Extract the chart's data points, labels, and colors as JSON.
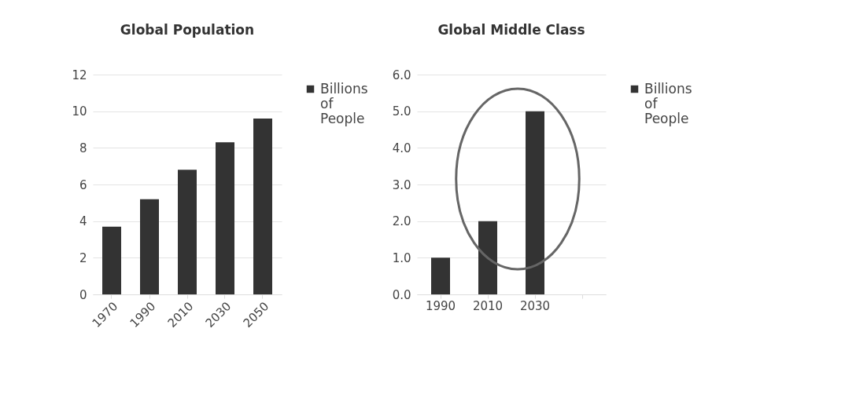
{
  "chart_data": [
    {
      "type": "bar",
      "title": "Global Population",
      "categories": [
        "1970",
        "1990",
        "2010",
        "2030",
        "2050"
      ],
      "series": [
        {
          "name": "Billions of People",
          "color": "#333333",
          "values": [
            3.7,
            5.2,
            6.8,
            8.3,
            9.6
          ]
        }
      ],
      "ylim": [
        0,
        12
      ],
      "yticks": [
        0,
        2,
        4,
        6,
        8,
        10,
        12
      ],
      "grid": "y",
      "legend": "right"
    },
    {
      "type": "bar",
      "title": "Global Middle Class",
      "categories": [
        "1990",
        "2010",
        "2030",
        null
      ],
      "series": [
        {
          "name": "Billions of People",
          "color": "#333333",
          "values": [
            1.0,
            2.0,
            5.0,
            null
          ]
        }
      ],
      "ylim": [
        0,
        6
      ],
      "yticks": [
        {
          "value": 0,
          "label": "0.0"
        },
        {
          "value": 1,
          "label": "1.0"
        },
        {
          "value": 2,
          "label": "2.0"
        },
        {
          "value": 3,
          "label": "3.0"
        },
        {
          "value": 4,
          "label": "4.0"
        },
        {
          "value": 5,
          "label": "5.0"
        },
        {
          "value": 6,
          "label": "6.0"
        }
      ],
      "grid": "y",
      "legend": "right"
    }
  ]
}
